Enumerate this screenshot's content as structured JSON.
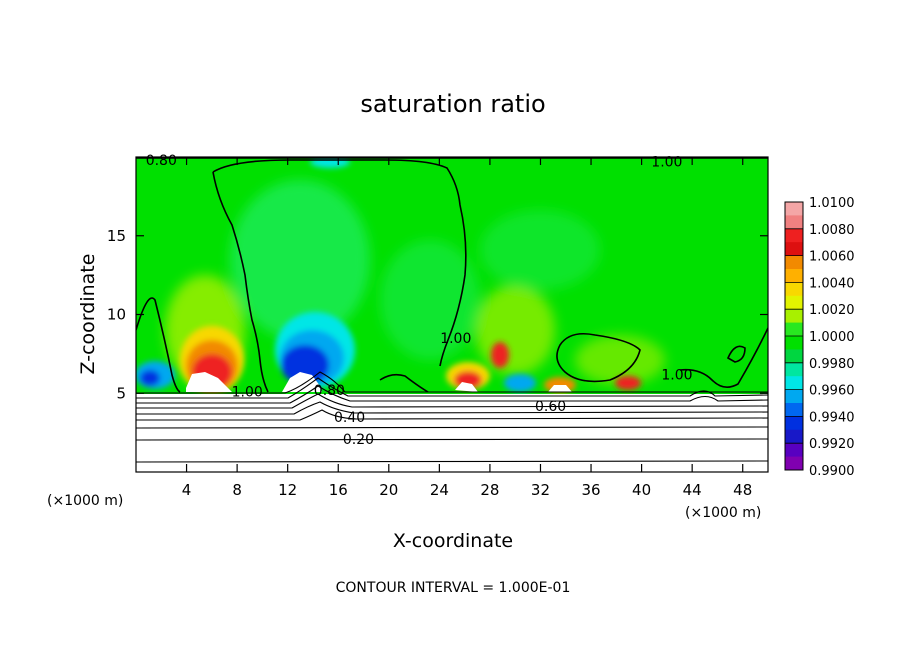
{
  "chart_data": {
    "type": "heatmap",
    "title": "saturation ratio",
    "xlabel": "X-coordinate",
    "ylabel": "Z-coordinate",
    "x_unit_left": "(×1000 m)",
    "x_unit_right": "(×1000 m)",
    "footer": "CONTOUR INTERVAL = 1.000E-01",
    "xlim": [
      0,
      50
    ],
    "ylim": [
      0,
      20
    ],
    "x_ticks": [
      4,
      8,
      12,
      16,
      20,
      24,
      28,
      32,
      36,
      40,
      44,
      48
    ],
    "y_ticks": [
      5,
      10,
      15
    ],
    "colorbar": {
      "levels": [
        "1.0100",
        "1.0080",
        "1.0060",
        "1.0040",
        "1.0020",
        "1.0000",
        "0.9980",
        "0.9960",
        "0.9940",
        "0.9920",
        "0.9900"
      ],
      "colors": [
        "#f4a6a6",
        "#f08080",
        "#ee2020",
        "#dd1010",
        "#f28a00",
        "#ffb000",
        "#f8d800",
        "#e2f400",
        "#a8f000",
        "#28e820",
        "#00e000",
        "#00d640",
        "#00e6a0",
        "#00e6e6",
        "#00a8f0",
        "#0068f0",
        "#0030e0",
        "#1818c8",
        "#5800c0",
        "#8000b0"
      ]
    },
    "contour_labels": [
      {
        "text": "0.80",
        "x": 2,
        "z": 19.8
      },
      {
        "text": "1.00",
        "x": 42,
        "z": 19.7
      },
      {
        "text": "1.00",
        "x": 25.3,
        "z": 8.5
      },
      {
        "text": "1.00",
        "x": 8.8,
        "z": 5.1
      },
      {
        "text": "1.00",
        "x": 42.8,
        "z": 6.2
      },
      {
        "text": "0.80",
        "x": 15.3,
        "z": 5.2
      },
      {
        "text": "0.40",
        "x": 16.9,
        "z": 3.5
      },
      {
        "text": "0.60",
        "x": 32.8,
        "z": 4.2
      },
      {
        "text": "0.20",
        "x": 17.6,
        "z": 2.1
      }
    ]
  }
}
